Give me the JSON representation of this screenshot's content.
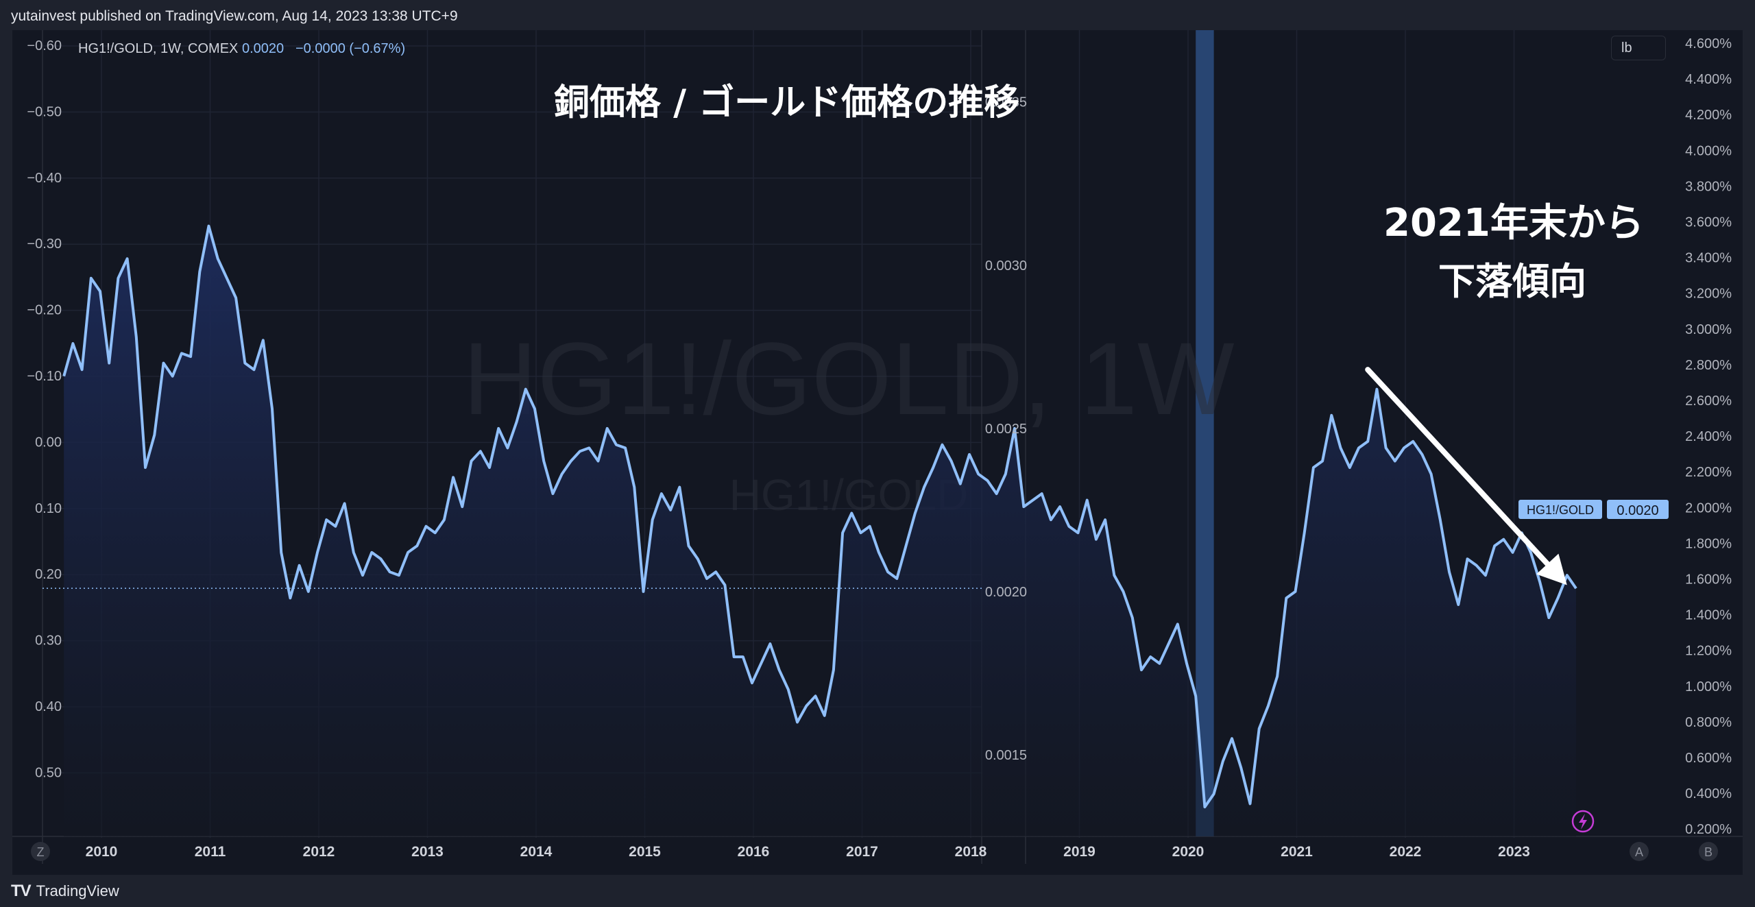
{
  "header": {
    "published": "yutainvest published on TradingView.com, Aug 14, 2023 13:38 UTC+9"
  },
  "legend": {
    "symbol": "HG1!/GOLD, 1W, COMEX",
    "price": "0.0020",
    "change": "−0.0000 (−0.67%)"
  },
  "watermark": {
    "main": "HG1!/GOLD, 1W",
    "sub": "HG1!/GOLD"
  },
  "annotations": {
    "title": "銅価格 / ゴールド価格の推移",
    "trend_line1": "2021年末から",
    "trend_line2": "下落傾向"
  },
  "price_tag": {
    "label": "HG1!/GOLD",
    "value": "0.0020"
  },
  "unit_button": "lb",
  "corner_buttons": {
    "left": "Z",
    "a": "A",
    "b": "B"
  },
  "footer": {
    "brand": "TradingView"
  },
  "colors": {
    "line": "#90bff9",
    "fill_top": "#1c2a55",
    "highlight": "#2d4e80",
    "annotation": "#ffffff",
    "lightning": "#c53cd6"
  },
  "chart_data": {
    "type": "line",
    "title": "銅価格 / ゴールド価格の推移",
    "x_ticks": [
      "2010",
      "2011",
      "2012",
      "2013",
      "2014",
      "2015",
      "2016",
      "2017",
      "2018",
      "2019",
      "2020",
      "2021",
      "2022",
      "2023"
    ],
    "left_axis_ticks": [
      "−0.60",
      "−0.50",
      "−0.40",
      "−0.30",
      "−0.20",
      "−0.10",
      "0.00",
      "0.10",
      "0.20",
      "0.30",
      "0.40",
      "0.50"
    ],
    "right_price_ticks": [
      "0.0035",
      "0.0030",
      "0.0025",
      "0.0020",
      "0.0015"
    ],
    "right_pct_ticks": [
      "4.600%",
      "4.400%",
      "4.200%",
      "4.000%",
      "3.800%",
      "3.600%",
      "3.400%",
      "3.200%",
      "3.000%",
      "2.800%",
      "2.600%",
      "2.400%",
      "2.200%",
      "2.000%",
      "1.800%",
      "1.600%",
      "1.400%",
      "1.200%",
      "1.000%",
      "0.800%",
      "0.600%",
      "0.400%",
      "0.200%"
    ],
    "ylim": [
      0.00125,
      0.00372
    ],
    "shaded_period": [
      "2020-02",
      "2020-04"
    ],
    "trend_arrow": {
      "from": [
        "2021-09",
        0.00268
      ],
      "to": [
        "2023-07",
        0.00202
      ]
    },
    "series": [
      {
        "name": "HG1!/GOLD",
        "points": [
          [
            "2009-09",
            0.00266
          ],
          [
            "2009-10",
            0.00276
          ],
          [
            "2009-11",
            0.00268
          ],
          [
            "2009-12",
            0.00296
          ],
          [
            "2010-01",
            0.00292
          ],
          [
            "2010-02",
            0.0027
          ],
          [
            "2010-03",
            0.00296
          ],
          [
            "2010-04",
            0.00302
          ],
          [
            "2010-05",
            0.00278
          ],
          [
            "2010-06",
            0.00238
          ],
          [
            "2010-07",
            0.00248
          ],
          [
            "2010-08",
            0.0027
          ],
          [
            "2010-09",
            0.00266
          ],
          [
            "2010-10",
            0.00273
          ],
          [
            "2010-11",
            0.00272
          ],
          [
            "2010-12",
            0.00298
          ],
          [
            "2011-01",
            0.00312
          ],
          [
            "2011-02",
            0.00302
          ],
          [
            "2011-03",
            0.00296
          ],
          [
            "2011-04",
            0.0029
          ],
          [
            "2011-05",
            0.0027
          ],
          [
            "2011-06",
            0.00268
          ],
          [
            "2011-07",
            0.00277
          ],
          [
            "2011-08",
            0.00256
          ],
          [
            "2011-09",
            0.00212
          ],
          [
            "2011-10",
            0.00198
          ],
          [
            "2011-11",
            0.00208
          ],
          [
            "2011-12",
            0.002
          ],
          [
            "2012-01",
            0.00212
          ],
          [
            "2012-02",
            0.00222
          ],
          [
            "2012-03",
            0.0022
          ],
          [
            "2012-04",
            0.00227
          ],
          [
            "2012-05",
            0.00212
          ],
          [
            "2012-06",
            0.00205
          ],
          [
            "2012-07",
            0.00212
          ],
          [
            "2012-08",
            0.0021
          ],
          [
            "2012-09",
            0.00206
          ],
          [
            "2012-10",
            0.00205
          ],
          [
            "2012-11",
            0.00212
          ],
          [
            "2012-12",
            0.00214
          ],
          [
            "2013-01",
            0.0022
          ],
          [
            "2013-02",
            0.00218
          ],
          [
            "2013-03",
            0.00222
          ],
          [
            "2013-04",
            0.00235
          ],
          [
            "2013-05",
            0.00226
          ],
          [
            "2013-06",
            0.0024
          ],
          [
            "2013-07",
            0.00243
          ],
          [
            "2013-08",
            0.00238
          ],
          [
            "2013-09",
            0.0025
          ],
          [
            "2013-10",
            0.00244
          ],
          [
            "2013-11",
            0.00252
          ],
          [
            "2013-12",
            0.00262
          ],
          [
            "2014-01",
            0.00256
          ],
          [
            "2014-02",
            0.0024
          ],
          [
            "2014-03",
            0.0023
          ],
          [
            "2014-04",
            0.00236
          ],
          [
            "2014-05",
            0.0024
          ],
          [
            "2014-06",
            0.00243
          ],
          [
            "2014-07",
            0.00244
          ],
          [
            "2014-08",
            0.0024
          ],
          [
            "2014-09",
            0.0025
          ],
          [
            "2014-10",
            0.00245
          ],
          [
            "2014-11",
            0.00244
          ],
          [
            "2014-12",
            0.00232
          ],
          [
            "2015-01",
            0.002
          ],
          [
            "2015-02",
            0.00222
          ],
          [
            "2015-03",
            0.0023
          ],
          [
            "2015-04",
            0.00225
          ],
          [
            "2015-05",
            0.00232
          ],
          [
            "2015-06",
            0.00214
          ],
          [
            "2015-07",
            0.0021
          ],
          [
            "2015-08",
            0.00204
          ],
          [
            "2015-09",
            0.00206
          ],
          [
            "2015-10",
            0.00202
          ],
          [
            "2015-11",
            0.0018
          ],
          [
            "2015-12",
            0.0018
          ],
          [
            "2016-01",
            0.00172
          ],
          [
            "2016-02",
            0.00178
          ],
          [
            "2016-03",
            0.00184
          ],
          [
            "2016-04",
            0.00176
          ],
          [
            "2016-05",
            0.0017
          ],
          [
            "2016-06",
            0.0016
          ],
          [
            "2016-07",
            0.00165
          ],
          [
            "2016-08",
            0.00168
          ],
          [
            "2016-09",
            0.00162
          ],
          [
            "2016-10",
            0.00176
          ],
          [
            "2016-11",
            0.00218
          ],
          [
            "2016-12",
            0.00224
          ],
          [
            "2017-01",
            0.00218
          ],
          [
            "2017-02",
            0.0022
          ],
          [
            "2017-03",
            0.00212
          ],
          [
            "2017-04",
            0.00206
          ],
          [
            "2017-05",
            0.00204
          ],
          [
            "2017-06",
            0.00214
          ],
          [
            "2017-07",
            0.00224
          ],
          [
            "2017-08",
            0.00232
          ],
          [
            "2017-09",
            0.00238
          ],
          [
            "2017-10",
            0.00245
          ],
          [
            "2017-11",
            0.0024
          ],
          [
            "2017-12",
            0.00233
          ],
          [
            "2018-01",
            0.00242
          ],
          [
            "2018-02",
            0.00236
          ],
          [
            "2018-03",
            0.00234
          ],
          [
            "2018-04",
            0.0023
          ],
          [
            "2018-05",
            0.00236
          ],
          [
            "2018-06",
            0.0025
          ],
          [
            "2018-07",
            0.00226
          ],
          [
            "2018-08",
            0.00228
          ],
          [
            "2018-09",
            0.0023
          ],
          [
            "2018-10",
            0.00222
          ],
          [
            "2018-11",
            0.00226
          ],
          [
            "2018-12",
            0.0022
          ],
          [
            "2019-01",
            0.00218
          ],
          [
            "2019-02",
            0.00228
          ],
          [
            "2019-03",
            0.00216
          ],
          [
            "2019-04",
            0.00222
          ],
          [
            "2019-05",
            0.00205
          ],
          [
            "2019-06",
            0.002
          ],
          [
            "2019-07",
            0.00192
          ],
          [
            "2019-08",
            0.00176
          ],
          [
            "2019-09",
            0.0018
          ],
          [
            "2019-10",
            0.00178
          ],
          [
            "2019-11",
            0.00184
          ],
          [
            "2019-12",
            0.0019
          ],
          [
            "2020-01",
            0.00178
          ],
          [
            "2020-02",
            0.00168
          ],
          [
            "2020-03",
            0.00134
          ],
          [
            "2020-04",
            0.00138
          ],
          [
            "2020-05",
            0.00148
          ],
          [
            "2020-06",
            0.00155
          ],
          [
            "2020-07",
            0.00146
          ],
          [
            "2020-08",
            0.00135
          ],
          [
            "2020-09",
            0.00158
          ],
          [
            "2020-10",
            0.00165
          ],
          [
            "2020-11",
            0.00174
          ],
          [
            "2020-12",
            0.00198
          ],
          [
            "2021-01",
            0.002
          ],
          [
            "2021-02",
            0.00218
          ],
          [
            "2021-03",
            0.00238
          ],
          [
            "2021-04",
            0.0024
          ],
          [
            "2021-05",
            0.00254
          ],
          [
            "2021-06",
            0.00244
          ],
          [
            "2021-07",
            0.00238
          ],
          [
            "2021-08",
            0.00244
          ],
          [
            "2021-09",
            0.00246
          ],
          [
            "2021-10",
            0.00262
          ],
          [
            "2021-11",
            0.00244
          ],
          [
            "2021-12",
            0.0024
          ],
          [
            "2022-01",
            0.00244
          ],
          [
            "2022-02",
            0.00246
          ],
          [
            "2022-03",
            0.00242
          ],
          [
            "2022-04",
            0.00236
          ],
          [
            "2022-05",
            0.00222
          ],
          [
            "2022-06",
            0.00206
          ],
          [
            "2022-07",
            0.00196
          ],
          [
            "2022-08",
            0.0021
          ],
          [
            "2022-09",
            0.00208
          ],
          [
            "2022-10",
            0.00205
          ],
          [
            "2022-11",
            0.00214
          ],
          [
            "2022-12",
            0.00216
          ],
          [
            "2023-01",
            0.00212
          ],
          [
            "2023-02",
            0.00218
          ],
          [
            "2023-03",
            0.00212
          ],
          [
            "2023-04",
            0.00203
          ],
          [
            "2023-05",
            0.00192
          ],
          [
            "2023-06",
            0.00198
          ],
          [
            "2023-07",
            0.00205
          ],
          [
            "2023-08",
            0.00201
          ]
        ]
      }
    ]
  }
}
